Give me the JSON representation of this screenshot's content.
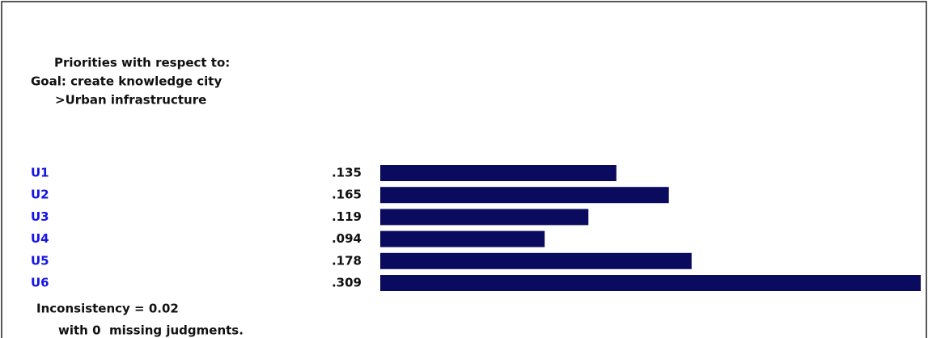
{
  "chart_data": {
    "type": "bar",
    "orientation": "horizontal",
    "title_lines": [
      "Priorities with respect to:",
      "Goal: create knowledge city",
      ">Urban infrastructure"
    ],
    "categories": [
      "U1",
      "U2",
      "U3",
      "U4",
      "U5",
      "U6"
    ],
    "values": [
      0.135,
      0.165,
      0.119,
      0.094,
      0.178,
      0.309
    ],
    "value_labels": [
      ".135",
      ".165",
      ".119",
      ".094",
      ".178",
      ".309"
    ],
    "color": "#0a0a5e",
    "category_color": "#1414e6",
    "footer_lines": [
      "Inconsistency = 0.02",
      "with 0  missing judgments."
    ]
  }
}
